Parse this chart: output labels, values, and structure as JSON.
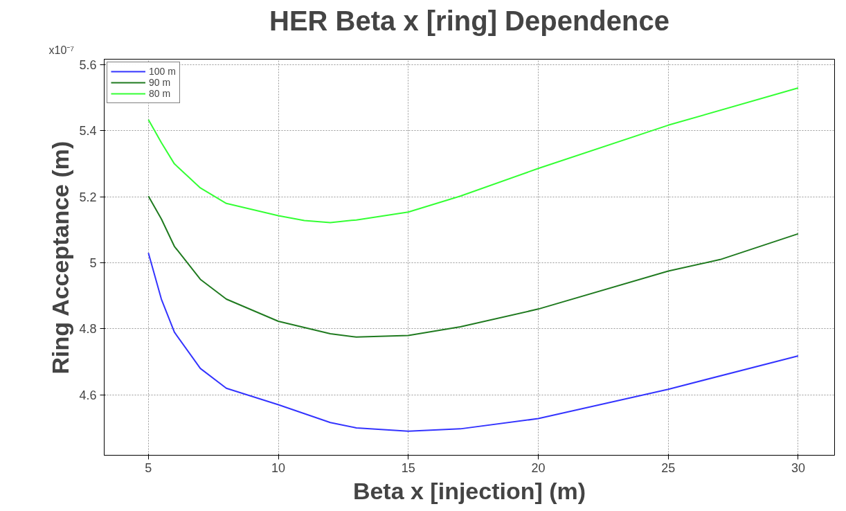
{
  "chart_data": {
    "type": "line",
    "title": "HER Beta x [ring] Dependence",
    "xlabel": "Beta x [injection] (m)",
    "ylabel": "Ring Acceptance (m)",
    "annotations": [
      "x10⁻⁷"
    ],
    "xlim": [
      3.3,
      31.4
    ],
    "ylim": [
      4.417,
      5.617
    ],
    "xticks": [
      5,
      10,
      15,
      20,
      25,
      30
    ],
    "yticks": [
      4.6,
      4.8,
      5,
      5.2,
      5.4,
      5.6
    ],
    "grid": true,
    "legend": "top left",
    "line_style": "solid",
    "marker": "none",
    "series": [
      {
        "name": "100 m",
        "color": "#3333ff",
        "x": [
          5,
          5.5,
          6,
          7,
          8,
          10,
          12,
          13,
          15,
          17,
          20,
          25,
          30
        ],
        "values": [
          5.03,
          4.89,
          4.79,
          4.68,
          4.62,
          4.57,
          4.516,
          4.5,
          4.49,
          4.497,
          4.528,
          4.617,
          4.718
        ]
      },
      {
        "name": "90 m",
        "color": "#1f7a1f",
        "x": [
          5,
          5.5,
          6,
          7,
          8,
          10,
          12,
          13,
          15,
          17,
          20,
          25,
          27,
          30
        ],
        "values": [
          5.202,
          5.133,
          5.05,
          4.95,
          4.89,
          4.823,
          4.785,
          4.775,
          4.78,
          4.806,
          4.86,
          4.975,
          5.01,
          5.088
        ]
      },
      {
        "name": "80 m",
        "color": "#33ff33",
        "x": [
          5,
          5.5,
          6,
          7,
          8,
          10,
          11,
          12,
          13,
          15,
          17,
          20,
          25,
          30
        ],
        "values": [
          5.434,
          5.364,
          5.3,
          5.227,
          5.18,
          5.143,
          5.128,
          5.122,
          5.13,
          5.154,
          5.202,
          5.286,
          5.417,
          5.53
        ]
      }
    ]
  }
}
